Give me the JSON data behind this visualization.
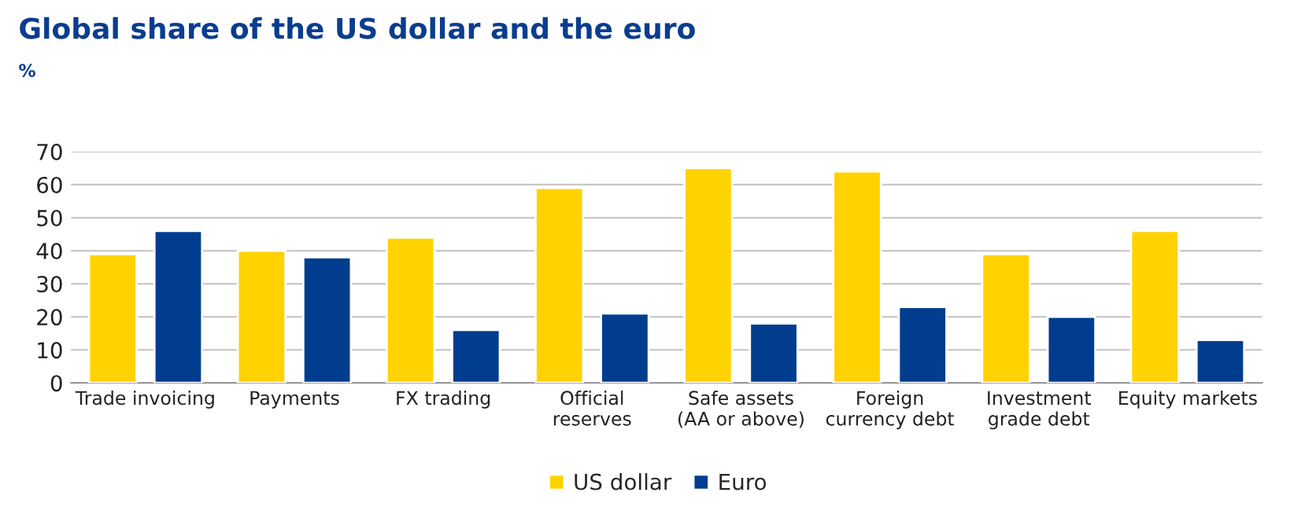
{
  "chart_data": {
    "type": "bar",
    "title": "Global share of the US dollar and the euro",
    "subtitle": "%",
    "categories": [
      "Trade invoicing",
      "Payments",
      "FX trading",
      "Official\nreserves",
      "Safe assets\n(AA or above)",
      "Foreign\ncurrency debt",
      "Investment\ngrade debt",
      "Equity markets"
    ],
    "series": [
      {
        "name": "US dollar",
        "color": "#ffd200",
        "values": [
          39,
          40,
          44,
          59,
          65,
          64,
          39,
          46
        ]
      },
      {
        "name": "Euro",
        "color": "#003d8f",
        "values": [
          46,
          38,
          16,
          21,
          18,
          23,
          20,
          13
        ]
      }
    ],
    "ylim": [
      0,
      70
    ],
    "yticks": [
      0,
      10,
      20,
      30,
      40,
      50,
      60,
      70
    ],
    "grid": "y",
    "legend": "bottom"
  }
}
